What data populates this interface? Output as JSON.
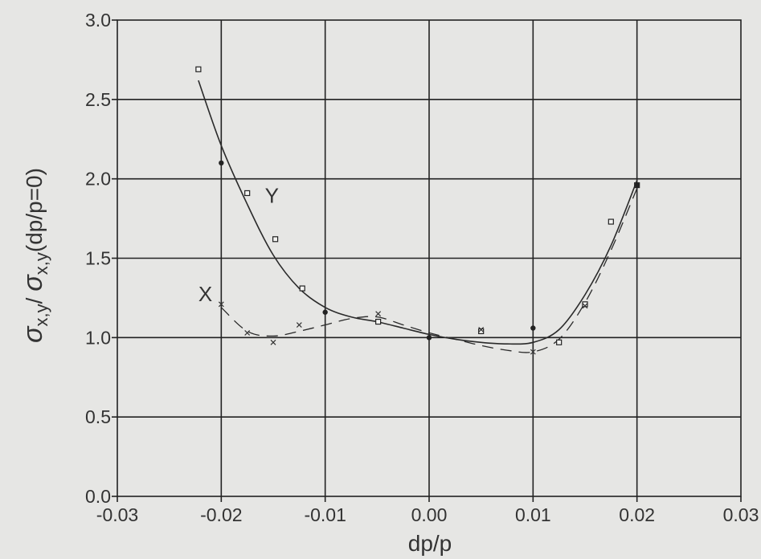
{
  "chart_data": {
    "type": "scatter",
    "title": "",
    "xlabel": "dp/p",
    "ylabel_sigma": "σ",
    "ylabel_sub1": "x,y",
    "ylabel_mid": "/ ",
    "ylabel_sigma2": "σ",
    "ylabel_sub2": "x,y",
    "ylabel_tail": "(dp/p=0)",
    "xlim": [
      -0.03,
      0.03
    ],
    "ylim": [
      0.0,
      3.0
    ],
    "grid": true,
    "x_ticks": [
      -0.03,
      -0.02,
      -0.01,
      0.0,
      0.01,
      0.02,
      0.03
    ],
    "x_tick_labels": [
      "-0.03",
      "-0.02",
      "-0.01",
      "0.00",
      "0.01",
      "0.02",
      "0.03"
    ],
    "y_ticks": [
      0.0,
      0.5,
      1.0,
      1.5,
      2.0,
      2.5,
      3.0
    ],
    "y_tick_labels": [
      "0.0",
      "0.5",
      "1.0",
      "1.5",
      "2.0",
      "2.5",
      "3.0"
    ],
    "series": [
      {
        "name": "Y",
        "line_style": "solid",
        "marker": "square",
        "points": [
          {
            "x": -0.0222,
            "y": 2.69
          },
          {
            "x": -0.0175,
            "y": 1.91
          },
          {
            "x": -0.0148,
            "y": 1.62
          },
          {
            "x": -0.0122,
            "y": 1.31
          },
          {
            "x": -0.0049,
            "y": 1.1
          },
          {
            "x": 0.005,
            "y": 1.04
          },
          {
            "x": 0.0125,
            "y": 0.97
          },
          {
            "x": 0.015,
            "y": 1.21
          },
          {
            "x": 0.0175,
            "y": 1.73
          },
          {
            "x": 0.02,
            "y": 1.96
          }
        ],
        "curve": [
          {
            "x": -0.0222,
            "y": 2.62
          },
          {
            "x": -0.02,
            "y": 2.21
          },
          {
            "x": -0.0175,
            "y": 1.84
          },
          {
            "x": -0.015,
            "y": 1.52
          },
          {
            "x": -0.0125,
            "y": 1.31
          },
          {
            "x": -0.01,
            "y": 1.19
          },
          {
            "x": -0.0075,
            "y": 1.13
          },
          {
            "x": -0.005,
            "y": 1.1
          },
          {
            "x": -0.0025,
            "y": 1.06
          },
          {
            "x": 0.0,
            "y": 1.02
          },
          {
            "x": 0.0025,
            "y": 0.99
          },
          {
            "x": 0.005,
            "y": 0.97
          },
          {
            "x": 0.0075,
            "y": 0.96
          },
          {
            "x": 0.01,
            "y": 0.97
          },
          {
            "x": 0.0125,
            "y": 1.05
          },
          {
            "x": 0.015,
            "y": 1.27
          },
          {
            "x": 0.0175,
            "y": 1.58
          },
          {
            "x": 0.02,
            "y": 1.99
          }
        ]
      },
      {
        "name": "X",
        "line_style": "dashed",
        "marker": "dot",
        "points": [
          {
            "x": -0.02,
            "y": 2.1
          },
          {
            "x": -0.01,
            "y": 1.16
          },
          {
            "x": 0.0,
            "y": 1.0
          },
          {
            "x": 0.01,
            "y": 1.06
          },
          {
            "x": 0.02,
            "y": 1.96
          }
        ],
        "secondary_points": [
          {
            "x": -0.02,
            "y": 1.21
          },
          {
            "x": -0.0175,
            "y": 1.03
          },
          {
            "x": -0.015,
            "y": 0.97
          },
          {
            "x": -0.0125,
            "y": 1.08
          },
          {
            "x": -0.0049,
            "y": 1.15
          },
          {
            "x": 0.005,
            "y": 1.05
          },
          {
            "x": 0.01,
            "y": 0.91
          },
          {
            "x": 0.015,
            "y": 1.2
          }
        ],
        "curve": [
          {
            "x": -0.02,
            "y": 1.19
          },
          {
            "x": -0.0175,
            "y": 1.04
          },
          {
            "x": -0.015,
            "y": 1.01
          },
          {
            "x": -0.0125,
            "y": 1.04
          },
          {
            "x": -0.01,
            "y": 1.08
          },
          {
            "x": -0.0075,
            "y": 1.12
          },
          {
            "x": -0.005,
            "y": 1.13
          },
          {
            "x": -0.0025,
            "y": 1.08
          },
          {
            "x": 0.0,
            "y": 1.03
          },
          {
            "x": 0.0025,
            "y": 0.99
          },
          {
            "x": 0.005,
            "y": 0.95
          },
          {
            "x": 0.0075,
            "y": 0.92
          },
          {
            "x": 0.01,
            "y": 0.91
          },
          {
            "x": 0.0125,
            "y": 0.99
          },
          {
            "x": 0.015,
            "y": 1.22
          },
          {
            "x": 0.0175,
            "y": 1.55
          },
          {
            "x": 0.02,
            "y": 1.94
          }
        ]
      }
    ],
    "annotations": [
      {
        "text": "Y",
        "x": -0.0158,
        "y": 1.85
      },
      {
        "text": "X",
        "x": -0.0222,
        "y": 1.23
      }
    ]
  }
}
